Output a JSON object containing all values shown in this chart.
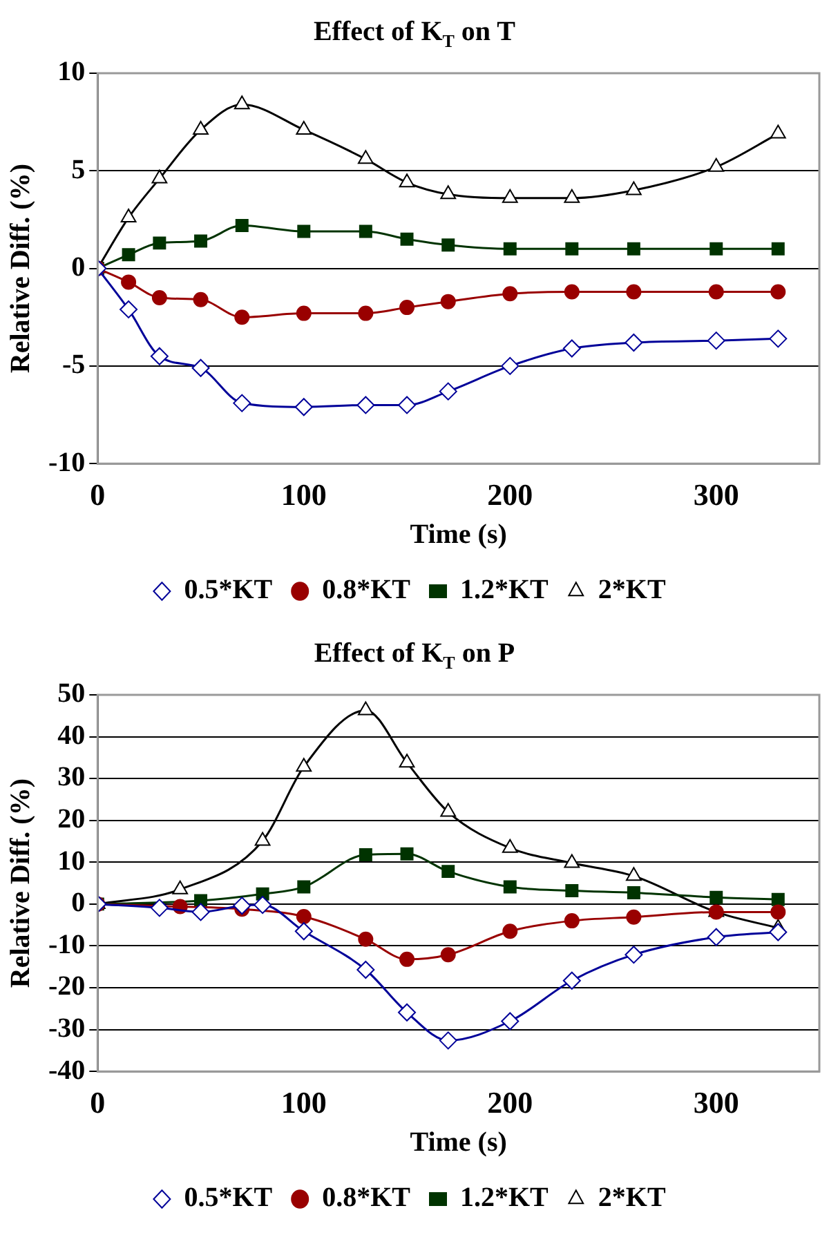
{
  "chart_data": [
    {
      "type": "line",
      "title": "Effect of K$_{T}$ on T",
      "xlabel": "Time (s)",
      "ylabel": "Relative Diff. (%)",
      "xlim": [
        0,
        350
      ],
      "xticks": [
        0,
        100,
        200,
        300
      ],
      "ylim": [
        -10,
        10
      ],
      "yticks": [
        -10,
        -5,
        0,
        5,
        10
      ],
      "grid": "y",
      "legend": "bottom",
      "series": [
        {
          "name": "0.5*KT",
          "color": "#000099",
          "marker": "diamond",
          "x": [
            0,
            15,
            30,
            50,
            70,
            100,
            130,
            150,
            170,
            200,
            230,
            260,
            300,
            330
          ],
          "values": [
            0,
            -2.1,
            -4.5,
            -5.1,
            -6.9,
            -7.1,
            -7.0,
            -7.0,
            -6.3,
            -5.0,
            -4.1,
            -3.8,
            -3.7,
            -3.6
          ]
        },
        {
          "name": "0.8*KT",
          "color": "#990000",
          "marker": "circle",
          "x": [
            0,
            15,
            30,
            50,
            70,
            100,
            130,
            150,
            170,
            200,
            230,
            260,
            300,
            330
          ],
          "values": [
            0,
            -0.7,
            -1.5,
            -1.6,
            -2.5,
            -2.3,
            -2.3,
            -2.0,
            -1.7,
            -1.3,
            -1.2,
            -1.2,
            -1.2,
            -1.2
          ]
        },
        {
          "name": "1.2*KT",
          "color": "#003300",
          "marker": "square",
          "x": [
            0,
            15,
            30,
            50,
            70,
            100,
            130,
            150,
            170,
            200,
            230,
            260,
            300,
            330
          ],
          "values": [
            0,
            0.7,
            1.3,
            1.4,
            2.2,
            1.9,
            1.9,
            1.5,
            1.2,
            1.0,
            1.0,
            1.0,
            1.0,
            1.0
          ]
        },
        {
          "name": "2*KT",
          "color": "#000000",
          "marker": "triangle",
          "x": [
            0,
            15,
            30,
            50,
            70,
            100,
            130,
            150,
            170,
            200,
            230,
            260,
            300,
            330
          ],
          "values": [
            0,
            2.6,
            4.6,
            7.1,
            8.4,
            7.1,
            5.6,
            4.4,
            3.8,
            3.6,
            3.6,
            4.0,
            5.2,
            6.9
          ]
        }
      ]
    },
    {
      "type": "line",
      "title": "Effect of K$_{T}$ on P",
      "xlabel": "Time (s)",
      "ylabel": "Relative Diff. (%)",
      "xlim": [
        0,
        350
      ],
      "xticks": [
        0,
        100,
        200,
        300
      ],
      "ylim": [
        -40,
        50
      ],
      "yticks": [
        -40,
        -30,
        -20,
        -10,
        0,
        10,
        20,
        30,
        40,
        50
      ],
      "grid": "y",
      "legend": "bottom",
      "series": [
        {
          "name": "0.5*KT",
          "color": "#000099",
          "marker": "diamond",
          "x": [
            0,
            30,
            50,
            70,
            80,
            100,
            130,
            150,
            170,
            200,
            230,
            260,
            300,
            330
          ],
          "values": [
            0,
            -0.9,
            -1.9,
            -0.4,
            -0.2,
            -6.5,
            -15.7,
            -25.9,
            -32.6,
            -28.0,
            -18.3,
            -12.1,
            -7.9,
            -6.7
          ]
        },
        {
          "name": "0.8*KT",
          "color": "#990000",
          "marker": "circle",
          "x": [
            0,
            40,
            70,
            100,
            130,
            150,
            170,
            200,
            230,
            260,
            300,
            330
          ],
          "values": [
            0,
            -0.6,
            -1.2,
            -3.0,
            -8.4,
            -13.2,
            -12.1,
            -6.5,
            -4.0,
            -3.1,
            -1.9,
            -1.9
          ]
        },
        {
          "name": "1.2*KT",
          "color": "#003300",
          "marker": "square",
          "x": [
            0,
            50,
            80,
            100,
            130,
            150,
            170,
            200,
            230,
            260,
            300,
            330
          ],
          "values": [
            0,
            0.8,
            2.4,
            4.1,
            11.8,
            12.0,
            7.8,
            4.1,
            3.2,
            2.7,
            1.6,
            1.1
          ]
        },
        {
          "name": "2*KT",
          "color": "#000000",
          "marker": "triangle",
          "x": [
            0,
            40,
            80,
            100,
            130,
            150,
            170,
            200,
            230,
            260,
            300,
            330
          ],
          "values": [
            0,
            3.5,
            15.1,
            32.8,
            46.3,
            33.8,
            22.0,
            13.4,
            9.8,
            6.7,
            -1.9,
            -5.7
          ]
        }
      ]
    }
  ]
}
